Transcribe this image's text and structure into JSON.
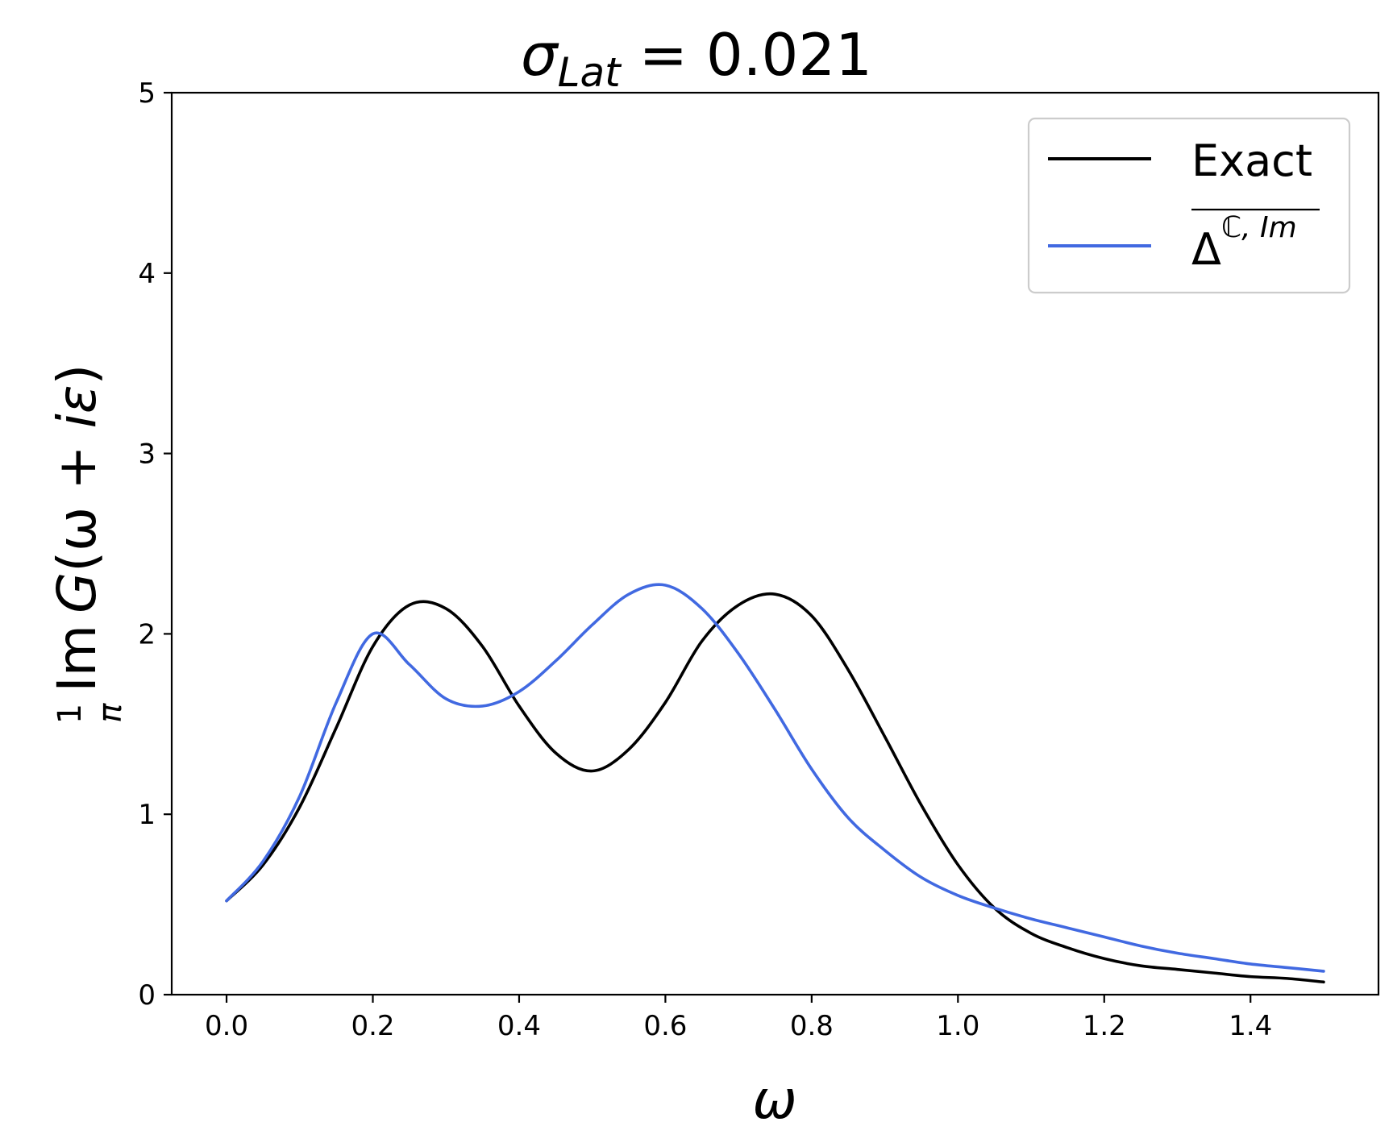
{
  "chart_data": {
    "type": "line",
    "title_main": "σ",
    "title_sub": "Lat",
    "title_rest": " = 0.021",
    "xlabel": "ω",
    "ylabel_frac_num": "1",
    "ylabel_frac_den": "π",
    "ylabel_im": "Im",
    "ylabel_g": "G",
    "ylabel_rest": "(ω + ",
    "ylabel_i": "iε",
    "ylabel_close": ")",
    "xlim": [
      -0.075,
      1.575
    ],
    "ylim": [
      0,
      5
    ],
    "xticks": [
      0.0,
      0.2,
      0.4,
      0.6,
      0.8,
      1.0,
      1.2,
      1.4
    ],
    "xtick_labels": [
      "0.0",
      "0.2",
      "0.4",
      "0.6",
      "0.8",
      "1.0",
      "1.2",
      "1.4"
    ],
    "yticks": [
      0,
      1,
      2,
      3,
      4,
      5
    ],
    "ytick_labels": [
      "0",
      "1",
      "2",
      "3",
      "4",
      "5"
    ],
    "grid": false,
    "legend_position": "top-right",
    "series": [
      {
        "name": "Exact",
        "color": "#000000",
        "x": [
          0.0,
          0.05,
          0.1,
          0.15,
          0.2,
          0.25,
          0.3,
          0.35,
          0.4,
          0.45,
          0.5,
          0.55,
          0.6,
          0.65,
          0.7,
          0.75,
          0.8,
          0.85,
          0.9,
          0.95,
          1.0,
          1.05,
          1.1,
          1.15,
          1.2,
          1.25,
          1.3,
          1.35,
          1.4,
          1.45,
          1.5
        ],
        "y": [
          0.52,
          0.72,
          1.04,
          1.48,
          1.93,
          2.16,
          2.14,
          1.93,
          1.6,
          1.34,
          1.24,
          1.36,
          1.62,
          1.96,
          2.16,
          2.22,
          2.1,
          1.8,
          1.43,
          1.05,
          0.72,
          0.48,
          0.34,
          0.26,
          0.2,
          0.16,
          0.14,
          0.12,
          0.1,
          0.09,
          0.07
        ]
      },
      {
        "name_main": "Δ",
        "name_sup": "ℂ, Im",
        "color": "#4169e1",
        "x": [
          0.0,
          0.05,
          0.1,
          0.15,
          0.2,
          0.25,
          0.3,
          0.35,
          0.4,
          0.45,
          0.5,
          0.55,
          0.6,
          0.65,
          0.7,
          0.75,
          0.8,
          0.85,
          0.9,
          0.95,
          1.0,
          1.05,
          1.1,
          1.15,
          1.2,
          1.25,
          1.3,
          1.35,
          1.4,
          1.45,
          1.5
        ],
        "y": [
          0.52,
          0.74,
          1.1,
          1.62,
          2.0,
          1.83,
          1.64,
          1.6,
          1.68,
          1.85,
          2.05,
          2.22,
          2.27,
          2.14,
          1.89,
          1.58,
          1.25,
          0.98,
          0.8,
          0.65,
          0.55,
          0.48,
          0.42,
          0.37,
          0.32,
          0.27,
          0.23,
          0.2,
          0.17,
          0.15,
          0.13
        ]
      }
    ]
  }
}
